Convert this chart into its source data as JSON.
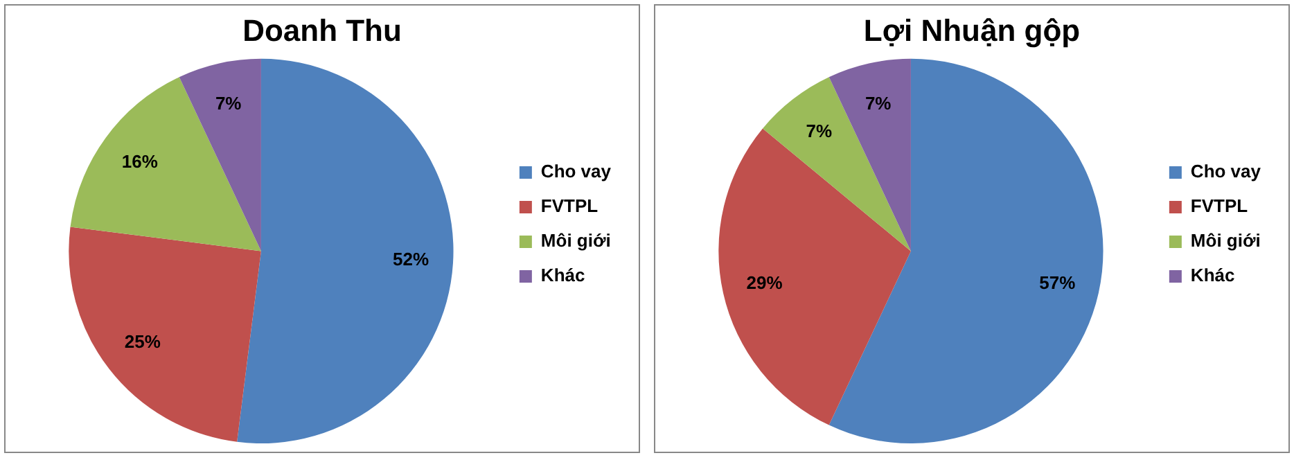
{
  "chart_data": [
    {
      "type": "pie",
      "title": "Doanh Thu",
      "categories": [
        "Cho vay",
        "FVTPL",
        "Môi giới",
        "Khác"
      ],
      "values": [
        52,
        25,
        16,
        7
      ],
      "value_labels": [
        "52%",
        "25%",
        "16%",
        "7%"
      ],
      "colors": [
        "#4f81bd",
        "#c0504d",
        "#9bbb59",
        "#8064a2"
      ],
      "legend": "right"
    },
    {
      "type": "pie",
      "title": "Lợi Nhuận gộp",
      "categories": [
        "Cho vay",
        "FVTPL",
        "Môi giới",
        "Khác"
      ],
      "values": [
        57,
        29,
        7,
        7
      ],
      "value_labels": [
        "57%",
        "29%",
        "7%",
        "7%"
      ],
      "colors": [
        "#4f81bd",
        "#c0504d",
        "#9bbb59",
        "#8064a2"
      ],
      "legend": "right"
    }
  ]
}
